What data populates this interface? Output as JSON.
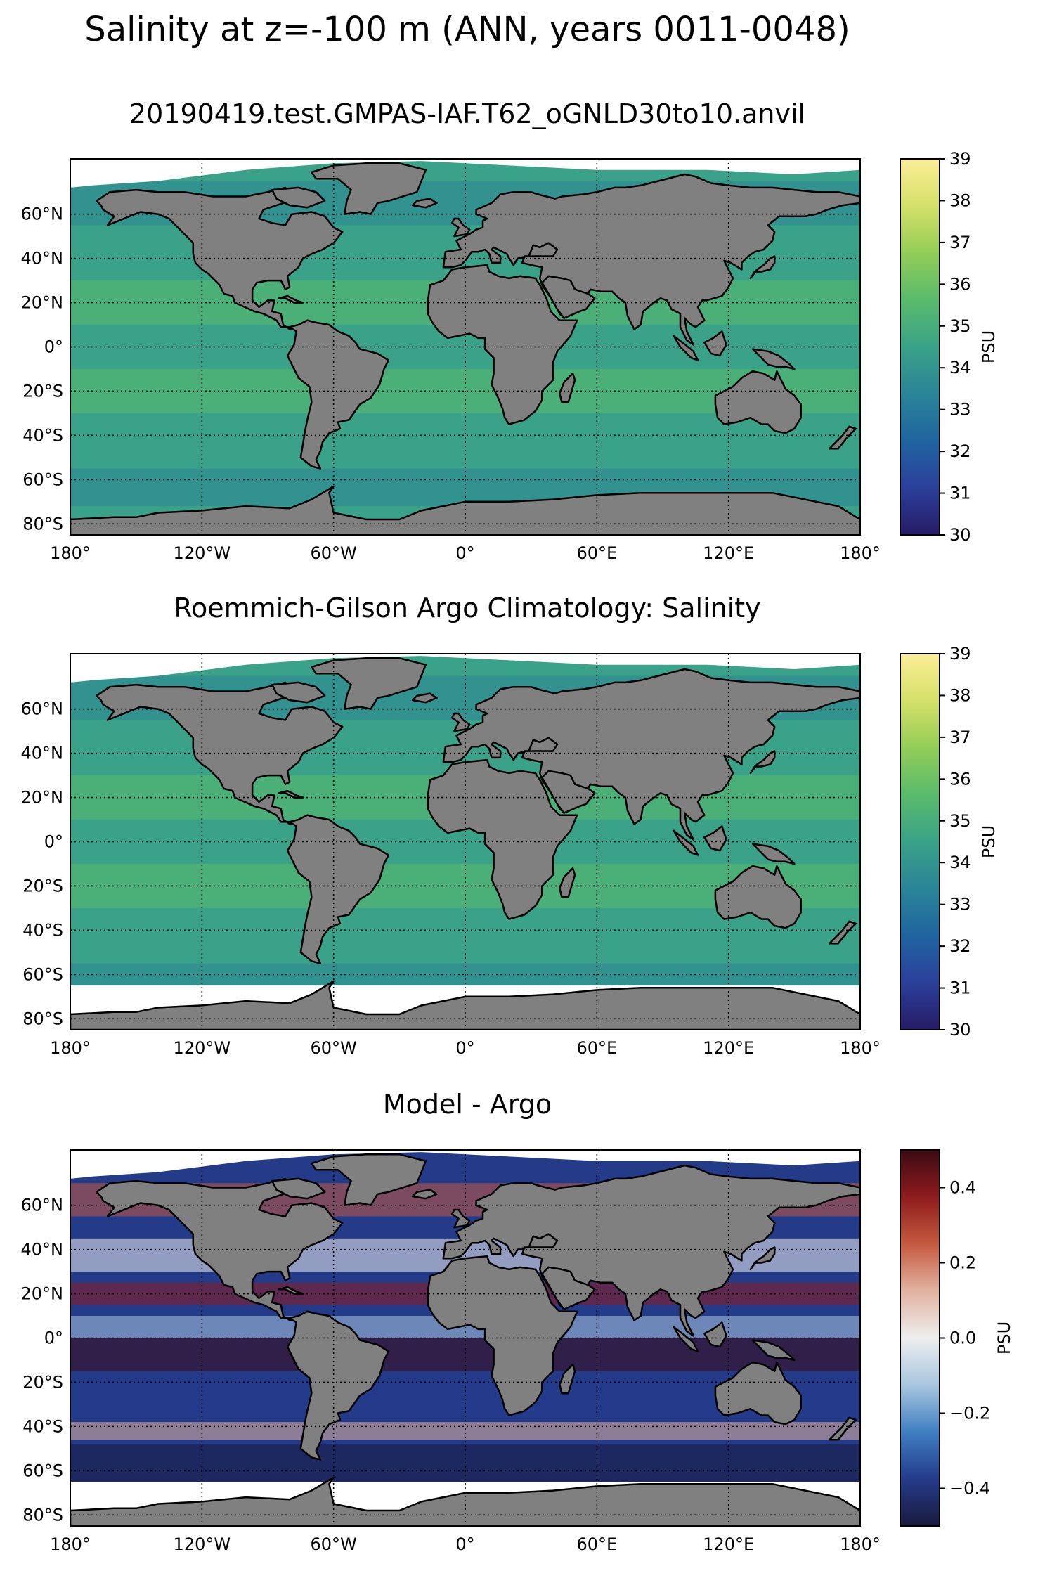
{
  "figure": {
    "title": "Salinity at z=-100 m (ANN, years 0011-0048)"
  },
  "map_axes": {
    "lon_ticks": [
      "180°",
      "120°W",
      "60°W",
      "0°",
      "60°E",
      "120°E",
      "180°"
    ],
    "lat_ticks": [
      "60°N",
      "40°N",
      "20°N",
      "0°",
      "20°S",
      "40°S",
      "60°S",
      "80°S"
    ],
    "lon_values": [
      -180,
      -120,
      -60,
      0,
      60,
      120,
      180
    ],
    "lat_values": [
      60,
      40,
      20,
      0,
      -20,
      -40,
      -60,
      -80
    ],
    "lon_range": [
      -180,
      180
    ],
    "lat_range": [
      -85,
      85
    ],
    "gridlines": "dotted",
    "land_color": "#808080"
  },
  "panels": [
    {
      "title": "20190419.test.GMPAS-IAF.T62_oGNLD30to10.anvil",
      "field": "model",
      "colorbar": {
        "label": "PSU",
        "ticks": [
          "39",
          "38",
          "37",
          "36",
          "35",
          "34",
          "33",
          "32",
          "31",
          "30"
        ],
        "tick_values": [
          39,
          38,
          37,
          36,
          35,
          34,
          33,
          32,
          31,
          30
        ],
        "range": [
          30,
          39
        ],
        "colormap": [
          "#281b67",
          "#2b3f9a",
          "#1f64a0",
          "#2a8597",
          "#3aa288",
          "#5abb6c",
          "#93cd57",
          "#d5e06a",
          "#fbee98"
        ]
      }
    },
    {
      "title": "Roemmich-Gilson Argo Climatology: Salinity",
      "field": "observations",
      "colorbar": {
        "label": "PSU",
        "ticks": [
          "39",
          "38",
          "37",
          "36",
          "35",
          "34",
          "33",
          "32",
          "31",
          "30"
        ],
        "tick_values": [
          39,
          38,
          37,
          36,
          35,
          34,
          33,
          32,
          31,
          30
        ],
        "range": [
          30,
          39
        ],
        "colormap": [
          "#281b67",
          "#2b3f9a",
          "#1f64a0",
          "#2a8597",
          "#3aa288",
          "#5abb6c",
          "#93cd57",
          "#d5e06a",
          "#fbee98"
        ]
      }
    },
    {
      "title": "Model - Argo",
      "field": "difference",
      "colorbar": {
        "label": "PSU",
        "ticks": [
          "0.4",
          "0.2",
          "0.0",
          "−0.2",
          "−0.4"
        ],
        "tick_values": [
          0.4,
          0.2,
          0.0,
          -0.2,
          -0.4
        ],
        "range": [
          -0.5,
          0.5
        ],
        "colormap": [
          "#1a1a3e",
          "#243b8a",
          "#3f7fc1",
          "#a8c6df",
          "#eeeeee",
          "#e2b2a1",
          "#c55a3f",
          "#8e1b1d",
          "#3b0b14"
        ]
      }
    }
  ]
}
